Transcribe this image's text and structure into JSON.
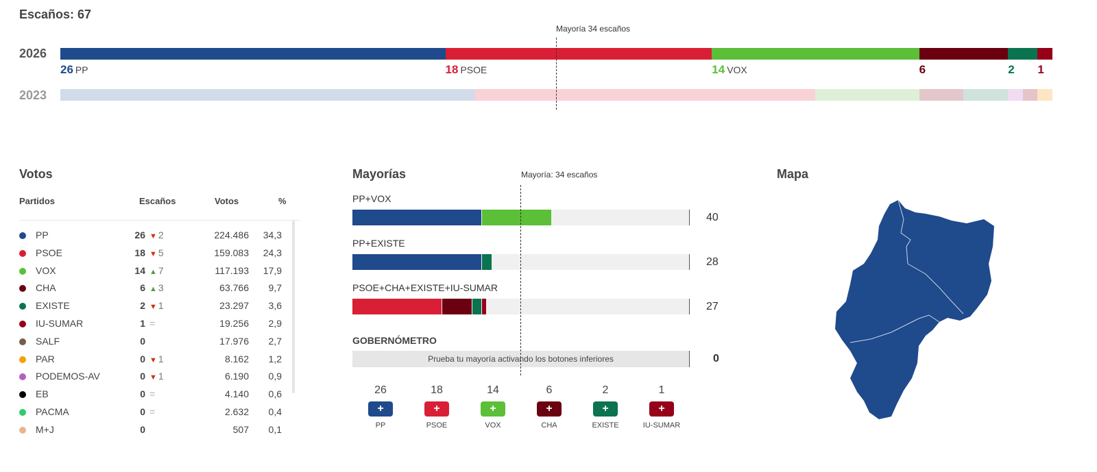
{
  "header": {
    "title": "Escaños: 67",
    "majority_label": "Mayoría 34 escaños"
  },
  "seats_bar": {
    "total": 67,
    "majority": 34,
    "current": {
      "year": "2026",
      "parties": [
        {
          "name": "PP",
          "seats": 26,
          "color": "#1f4a8c"
        },
        {
          "name": "PSOE",
          "seats": 18,
          "color": "#d91f35"
        },
        {
          "name": "VOX",
          "seats": 14,
          "color": "#5bbf37"
        },
        {
          "name": "CHA",
          "seats": 6,
          "color": "#6b0010"
        },
        {
          "name": "EXISTE",
          "seats": 2,
          "color": "#0b7350"
        },
        {
          "name": "IU-SUMAR",
          "seats": 1,
          "color": "#960018"
        }
      ]
    },
    "previous": {
      "year": "2023",
      "parties": [
        {
          "seats": 28,
          "color": "#d2dbe9"
        },
        {
          "seats": 23,
          "color": "#f8d2d7"
        },
        {
          "seats": 7,
          "color": "#def0d7"
        },
        {
          "seats": 3,
          "color": "#e2c8cb"
        },
        {
          "seats": 3,
          "color": "#cfe3dc"
        },
        {
          "seats": 1,
          "color": "#f0dcf3"
        },
        {
          "seats": 1,
          "color": "#e5c5c9"
        },
        {
          "seats": 1,
          "color": "#fde6c3"
        }
      ]
    }
  },
  "votes": {
    "title": "Votos",
    "headers": {
      "party": "Partidos",
      "seats": "Escaños",
      "votes": "Votos",
      "pct": "%"
    },
    "rows": [
      {
        "party": "PP",
        "color": "#1f4a8c",
        "seats": "26",
        "trend": "down",
        "change": "2",
        "votes": "224.486",
        "pct": "34,3"
      },
      {
        "party": "PSOE",
        "color": "#d91f35",
        "seats": "18",
        "trend": "down",
        "change": "5",
        "votes": "159.083",
        "pct": "24,3"
      },
      {
        "party": "VOX",
        "color": "#5bbf37",
        "seats": "14",
        "trend": "up",
        "change": "7",
        "votes": "117.193",
        "pct": "17,9"
      },
      {
        "party": "CHA",
        "color": "#6b0010",
        "seats": "6",
        "trend": "up",
        "change": "3",
        "votes": "63.766",
        "pct": "9,7"
      },
      {
        "party": "EXISTE",
        "color": "#0b7350",
        "seats": "2",
        "trend": "down",
        "change": "1",
        "votes": "23.297",
        "pct": "3,6"
      },
      {
        "party": "IU-SUMAR",
        "color": "#960018",
        "seats": "1",
        "trend": "equal",
        "change": "",
        "votes": "19.256",
        "pct": "2,9"
      },
      {
        "party": "SALF",
        "color": "#7a5a48",
        "seats": "0",
        "trend": "none",
        "change": "",
        "votes": "17.976",
        "pct": "2,7"
      },
      {
        "party": "PAR",
        "color": "#f7a000",
        "seats": "0",
        "trend": "down",
        "change": "1",
        "votes": "8.162",
        "pct": "1,2"
      },
      {
        "party": "PODEMOS-AV",
        "color": "#b35fc2",
        "seats": "0",
        "trend": "down",
        "change": "1",
        "votes": "6.190",
        "pct": "0,9"
      },
      {
        "party": "EB",
        "color": "#000000",
        "seats": "0",
        "trend": "equal",
        "change": "",
        "votes": "4.140",
        "pct": "0,6"
      },
      {
        "party": "PACMA",
        "color": "#2ecc71",
        "seats": "0",
        "trend": "equal",
        "change": "",
        "votes": "2.632",
        "pct": "0,4"
      },
      {
        "party": "M+J",
        "color": "#eab48f",
        "seats": "0",
        "trend": "none",
        "change": "",
        "votes": "507",
        "pct": "0,1"
      }
    ]
  },
  "majorities": {
    "title": "Mayorías",
    "majority_label": "Mayoría: 34 escaños",
    "coalitions": [
      {
        "label": "PP+VOX",
        "total": "40",
        "parts": [
          {
            "seats": 26,
            "color": "#1f4a8c"
          },
          {
            "seats": 14,
            "color": "#5bbf37"
          }
        ]
      },
      {
        "label": "PP+EXISTE",
        "total": "28",
        "parts": [
          {
            "seats": 26,
            "color": "#1f4a8c"
          },
          {
            "seats": 2,
            "color": "#0b7350"
          }
        ]
      },
      {
        "label": "PSOE+CHA+EXISTE+IU-SUMAR",
        "total": "27",
        "parts": [
          {
            "seats": 18,
            "color": "#d91f35"
          },
          {
            "seats": 6,
            "color": "#6b0010"
          },
          {
            "seats": 2,
            "color": "#0b7350"
          },
          {
            "seats": 1,
            "color": "#960018"
          }
        ]
      }
    ],
    "gobernometro": {
      "title": "GOBERNÓMETRO",
      "hint": "Prueba tu mayoría activando los botones inferiores",
      "total": "0"
    },
    "buttons": [
      {
        "party": "PP",
        "seats": "26",
        "color": "#1f4a8c",
        "icon": "plus-icon",
        "symbol": "+"
      },
      {
        "party": "PSOE",
        "seats": "18",
        "color": "#d91f35",
        "icon": "plus-icon",
        "symbol": "+"
      },
      {
        "party": "VOX",
        "seats": "14",
        "color": "#5bbf37",
        "icon": "plus-icon",
        "symbol": "+"
      },
      {
        "party": "CHA",
        "seats": "6",
        "color": "#6b0010",
        "icon": "plus-icon",
        "symbol": "+"
      },
      {
        "party": "EXISTE",
        "seats": "2",
        "color": "#0b7350",
        "icon": "plus-icon",
        "symbol": "+"
      },
      {
        "party": "IU-SUMAR",
        "seats": "1",
        "color": "#960018",
        "icon": "plus-icon",
        "symbol": "+"
      }
    ]
  },
  "map": {
    "title": "Mapa",
    "fill": "#1f4a8c"
  }
}
